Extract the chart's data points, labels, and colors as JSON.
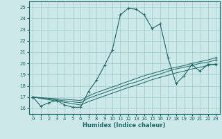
{
  "xlabel": "Humidex (Indice chaleur)",
  "bg_color": "#cce8e8",
  "grid_color": "#99cccc",
  "line_color": "#1a6666",
  "xlim": [
    -0.5,
    23.5
  ],
  "ylim": [
    15.5,
    25.5
  ],
  "xticks": [
    0,
    1,
    2,
    3,
    4,
    5,
    6,
    7,
    8,
    9,
    10,
    11,
    12,
    13,
    14,
    15,
    16,
    17,
    18,
    19,
    20,
    21,
    22,
    23
  ],
  "yticks": [
    16,
    17,
    18,
    19,
    20,
    21,
    22,
    23,
    24,
    25
  ],
  "main_line": {
    "x": [
      0,
      1,
      2,
      3,
      4,
      5,
      6,
      7,
      8,
      9,
      10,
      11,
      12,
      13,
      14,
      15,
      16,
      17,
      18,
      19,
      20,
      21,
      22,
      23
    ],
    "y": [
      17.0,
      16.2,
      16.5,
      16.7,
      16.3,
      16.1,
      16.1,
      17.5,
      18.5,
      19.8,
      21.2,
      24.3,
      24.9,
      24.8,
      24.3,
      23.1,
      23.5,
      20.5,
      18.2,
      18.9,
      19.9,
      19.3,
      19.9,
      19.9
    ]
  },
  "trend_lines": [
    {
      "x": [
        0,
        6,
        7,
        8,
        9,
        10,
        11,
        12,
        13,
        14,
        15,
        16,
        17,
        18,
        19,
        20,
        21,
        22,
        23
      ],
      "y": [
        17.0,
        16.3,
        16.6,
        16.85,
        17.1,
        17.35,
        17.6,
        17.85,
        18.05,
        18.3,
        18.55,
        18.75,
        18.95,
        19.15,
        19.3,
        19.5,
        19.65,
        19.8,
        19.95
      ]
    },
    {
      "x": [
        0,
        6,
        7,
        8,
        9,
        10,
        11,
        12,
        13,
        14,
        15,
        16,
        17,
        18,
        19,
        20,
        21,
        22,
        23
      ],
      "y": [
        17.0,
        16.5,
        16.9,
        17.15,
        17.4,
        17.65,
        17.9,
        18.15,
        18.35,
        18.6,
        18.85,
        19.05,
        19.3,
        19.5,
        19.65,
        19.8,
        20.0,
        20.1,
        20.3
      ]
    },
    {
      "x": [
        0,
        6,
        7,
        8,
        9,
        10,
        11,
        12,
        13,
        14,
        15,
        16,
        17,
        18,
        19,
        20,
        21,
        22,
        23
      ],
      "y": [
        17.0,
        16.7,
        17.1,
        17.4,
        17.65,
        17.9,
        18.15,
        18.4,
        18.65,
        18.9,
        19.1,
        19.3,
        19.5,
        19.65,
        19.8,
        20.0,
        20.15,
        20.3,
        20.5
      ]
    }
  ]
}
